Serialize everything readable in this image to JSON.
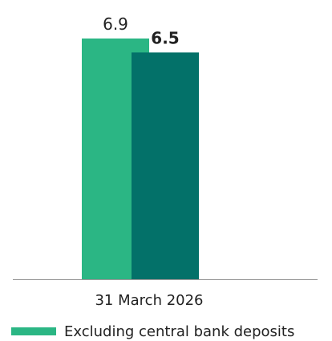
{
  "chart_data": {
    "type": "bar",
    "categories": [
      "31 March 2026"
    ],
    "series": [
      {
        "name": "Excluding central bank deposits",
        "values": [
          6.9
        ],
        "color": "#2bb684"
      },
      {
        "values": [
          6.5
        ],
        "color": "#037169"
      }
    ],
    "data_labels": [
      "6.9",
      "6.5"
    ],
    "ylim": [
      0,
      6.9
    ],
    "axis_color": "#999999",
    "legend_position": "bottom-left",
    "grid": false
  }
}
